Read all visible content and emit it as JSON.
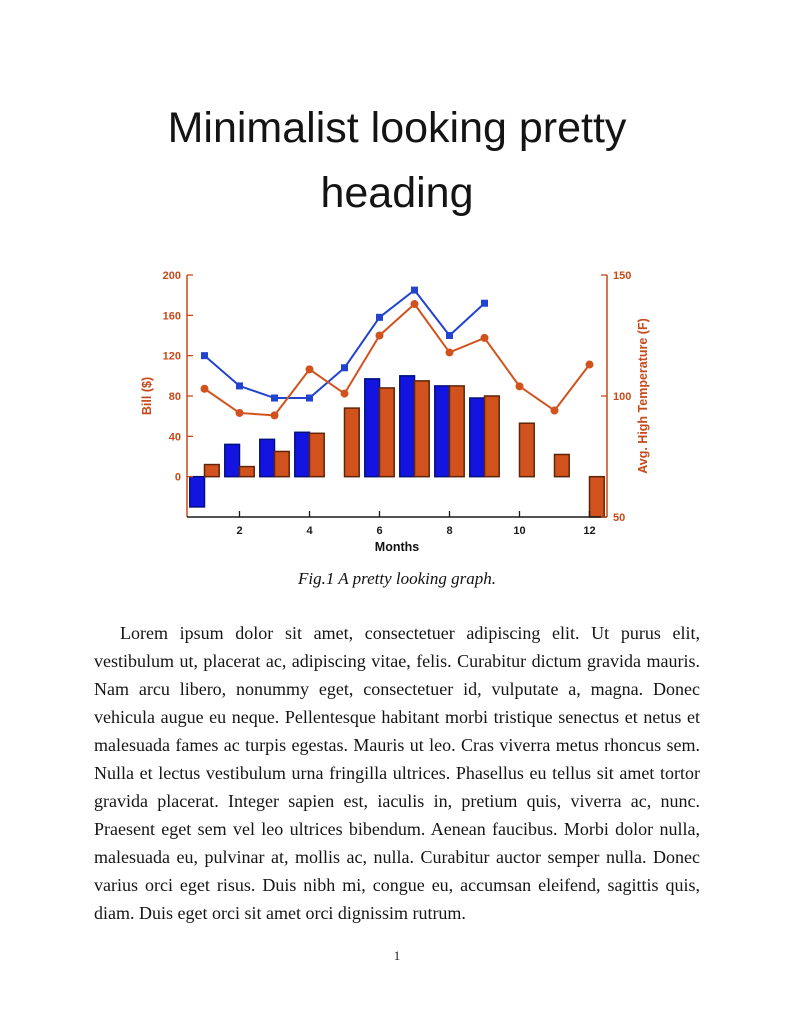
{
  "page": {
    "title_line1": "Minimalist looking pretty",
    "title_line2": "heading",
    "figure_caption": "Fig.1 A pretty looking graph.",
    "body_paragraph": "Lorem ipsum dolor sit amet, consectetuer adipiscing elit. Ut purus elit, vestibulum ut, placerat ac, adipiscing vitae, felis. Curabitur dictum gravida mauris. Nam arcu libero, nonummy eget, consectetuer id, vulputate a, magna. Donec vehicula augue eu neque. Pellentesque habitant morbi tristique senectus et netus et malesuada fames ac turpis egestas. Mauris ut leo. Cras viverra metus rhoncus sem. Nulla et lectus vestibulum urna fringilla ultrices. Phasellus eu tellus sit amet tortor gravida placerat. Integer sapien est, iaculis in, pretium quis, viverra ac, nunc. Praesent eget sem vel leo ultrices bibendum. Aenean faucibus. Morbi dolor nulla, malesuada eu, pulvinar at, mollis ac, nulla. Curabitur auctor semper nulla. Donec varius orci eget risus. Duis nibh mi, congue eu, accumsan eleifend, sagittis quis, diam. Duis eget orci sit amet orci dignissim rutrum.",
    "page_number": "1"
  },
  "chart_data": {
    "type": "bar",
    "subtype": "grouped-bars-with-overlaid-lines",
    "x": [
      1,
      2,
      3,
      4,
      5,
      6,
      7,
      8,
      9,
      10,
      11,
      12
    ],
    "xlabel": "Months",
    "x_ticks": [
      2,
      4,
      6,
      8,
      10,
      12
    ],
    "grid": false,
    "left_axis": {
      "label": "Bill ($)",
      "range": [
        -40,
        200
      ],
      "ticks": [
        0,
        40,
        80,
        120,
        160,
        200
      ],
      "color": "#c8491a"
    },
    "right_axis": {
      "label": "Avg. High Temperature (F)",
      "range": [
        50,
        150
      ],
      "ticks": [
        50,
        100,
        150
      ],
      "color": "#c8491a"
    },
    "x_axis_color": "#1a1a1a",
    "series": [
      {
        "name": "bill-blue-bars",
        "type": "bar",
        "axis": "left",
        "color": "#1414e0",
        "edge": "#00107d",
        "values": [
          -30,
          32,
          37,
          44,
          null,
          97,
          100,
          90,
          78,
          null,
          null,
          null
        ]
      },
      {
        "name": "bill-orange-bars",
        "type": "bar",
        "axis": "left",
        "color": "#d2521e",
        "edge": "#5f2509",
        "values": [
          12,
          10,
          25,
          43,
          68,
          88,
          95,
          90,
          80,
          53,
          22,
          -40
        ]
      },
      {
        "name": "blue-line-squares",
        "type": "line",
        "axis": "left",
        "marker": "square",
        "color": "#2143cf",
        "values": [
          120,
          90,
          78,
          78,
          108,
          158,
          185,
          140,
          172,
          null,
          null,
          null
        ]
      },
      {
        "name": "temp-orange-line-circles",
        "type": "line",
        "axis": "right",
        "marker": "circle",
        "color": "#d2521e",
        "values": [
          103,
          93,
          92,
          111,
          101,
          125,
          138,
          118,
          124,
          104,
          94,
          113
        ]
      }
    ]
  }
}
